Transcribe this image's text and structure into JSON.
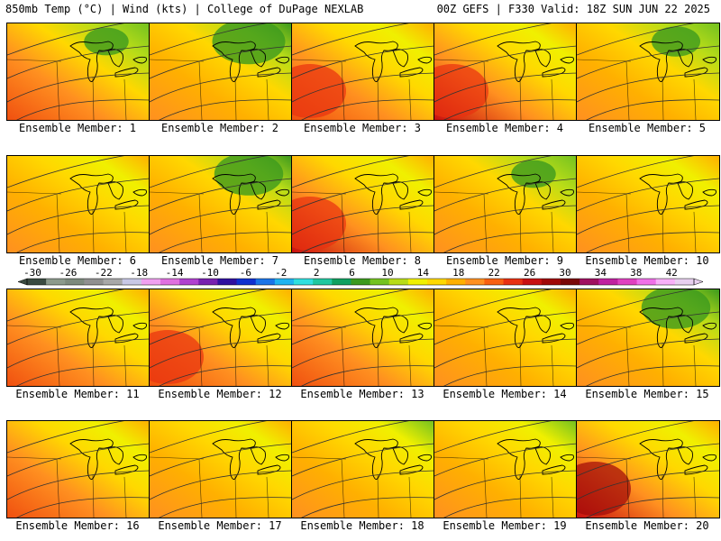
{
  "header": {
    "title_left": "850mb Temp (°C) | Wind (kts) | College of DuPage NEXLAB",
    "title_right": "00Z GEFS | F330 Valid: 18Z SUN JUN 22 2025"
  },
  "panels": [
    {
      "label": "Ensemble Member: 1",
      "warm": 0.7,
      "cool": 0.55
    },
    {
      "label": "Ensemble Member: 2",
      "warm": 0.2,
      "cool": 0.9
    },
    {
      "label": "Ensemble Member: 3",
      "warm": 0.75,
      "cool": 0.15
    },
    {
      "label": "Ensemble Member: 4",
      "warm": 0.85,
      "cool": 0.1
    },
    {
      "label": "Ensemble Member: 5",
      "warm": 0.4,
      "cool": 0.6
    },
    {
      "label": "Ensemble Member: 6",
      "warm": 0.5,
      "cool": 0.15
    },
    {
      "label": "Ensemble Member: 7",
      "warm": 0.3,
      "cool": 0.85
    },
    {
      "label": "Ensemble Member: 8",
      "warm": 0.85,
      "cool": 0.1
    },
    {
      "label": "Ensemble Member: 9",
      "warm": 0.6,
      "cool": 0.55
    },
    {
      "label": "Ensemble Member: 10",
      "warm": 0.6,
      "cool": 0.1
    },
    {
      "label": "Ensemble Member: 11",
      "warm": 0.7,
      "cool": 0.1
    },
    {
      "label": "Ensemble Member: 12",
      "warm": 0.75,
      "cool": 0.1
    },
    {
      "label": "Ensemble Member: 13",
      "warm": 0.65,
      "cool": 0.3
    },
    {
      "label": "Ensemble Member: 14",
      "warm": 0.55,
      "cool": 0.1
    },
    {
      "label": "Ensemble Member: 15",
      "warm": 0.35,
      "cool": 0.85
    },
    {
      "label": "Ensemble Member: 16",
      "warm": 0.7,
      "cool": 0.35
    },
    {
      "label": "Ensemble Member: 17",
      "warm": 0.6,
      "cool": 0.25
    },
    {
      "label": "Ensemble Member: 18",
      "warm": 0.35,
      "cool": 0.5
    },
    {
      "label": "Ensemble Member: 19",
      "warm": 0.55,
      "cool": 0.45
    },
    {
      "label": "Ensemble Member: 20",
      "warm": 0.9,
      "cool": 0.1
    }
  ],
  "legend": {
    "labels": [
      "-30",
      "-26",
      "-22",
      "-18",
      "-14",
      "-10",
      "-6",
      "-2",
      "2",
      "6",
      "10",
      "14",
      "18",
      "22",
      "26",
      "30",
      "34",
      "38",
      "42"
    ],
    "colors": [
      "#3a4a40",
      "#8c9a8c",
      "#7d8a7d",
      "#909090",
      "#a8a8a8",
      "#c8c8e6",
      "#f0a0f0",
      "#e070e0",
      "#b040d0",
      "#7820b0",
      "#3010a0",
      "#1030d0",
      "#1a74e8",
      "#20b4f0",
      "#30e0e0",
      "#20c8a0",
      "#10a060",
      "#3c9a1e",
      "#74c220",
      "#b8dc18",
      "#f0f000",
      "#ffd800",
      "#ffb000",
      "#ff9020",
      "#f86010",
      "#e83010",
      "#c81010",
      "#a00808",
      "#7a0808",
      "#a01060",
      "#c020a0",
      "#e040c0",
      "#f070e8",
      "#f8b0f8",
      "#e8d0f0"
    ]
  }
}
